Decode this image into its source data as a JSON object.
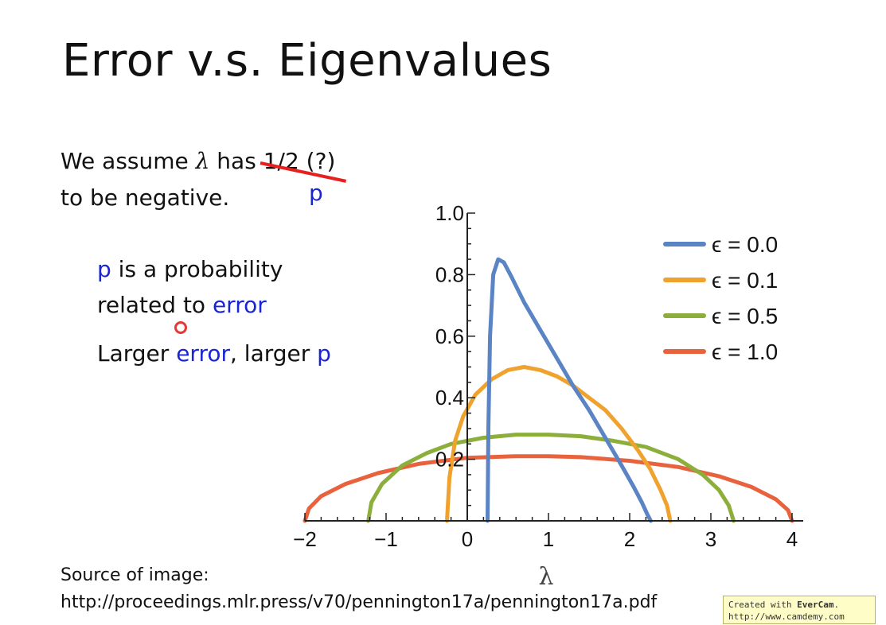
{
  "slide": {
    "title": "Error v.s. Eigenvalues",
    "line1_pre": "We assume ",
    "lambda": "λ",
    "line1_mid": " has ",
    "struck_text": "1/2 (?)",
    "p_annotation": "p",
    "line2": "to be negative.",
    "note1_p": "p",
    "note1_rest": " is a probability",
    "note2_pre": "related to ",
    "note2_error": "error",
    "note3_pre": "Larger ",
    "note3_error": "error",
    "note3_mid": ", larger ",
    "note3_p": "p",
    "source_label": "Source of image:",
    "source_url": "http://proceedings.mlr.press/v70/pennington17a/pennington17a.pdf",
    "watermark_line1_pre": "Created with ",
    "watermark_brand": "EverCam",
    "watermark_line1_post": ".",
    "watermark_line2": "http://www.camdemy.com"
  },
  "chart_data": {
    "type": "line",
    "title": "",
    "xlabel": "λ",
    "ylabel": "",
    "xlim": [
      -2,
      4
    ],
    "ylim": [
      0,
      1.0
    ],
    "x_ticks": [
      "−2",
      "−1",
      "0",
      "1",
      "2",
      "3",
      "4"
    ],
    "y_ticks": [
      "0.2",
      "0.4",
      "0.6",
      "0.8",
      "1.0"
    ],
    "y_tick_values": [
      0.2,
      0.4,
      0.6,
      0.8,
      1.0
    ],
    "x_tick_values": [
      -2,
      -1,
      0,
      1,
      2,
      3,
      4
    ],
    "legend_position": "top-right",
    "series": [
      {
        "name": "ϵ = 0.0",
        "color": "#5b84c4",
        "x": [
          0.25,
          0.26,
          0.28,
          0.32,
          0.38,
          0.45,
          0.55,
          0.7,
          0.9,
          1.1,
          1.3,
          1.5,
          1.7,
          1.9,
          2.05,
          2.15,
          2.22,
          2.26
        ],
        "y": [
          0,
          0.3,
          0.6,
          0.8,
          0.85,
          0.84,
          0.79,
          0.71,
          0.62,
          0.53,
          0.44,
          0.36,
          0.27,
          0.18,
          0.11,
          0.06,
          0.02,
          0
        ]
      },
      {
        "name": "ϵ = 0.1",
        "color": "#f0a22e",
        "x": [
          -0.25,
          -0.22,
          -0.15,
          -0.05,
          0.1,
          0.3,
          0.5,
          0.7,
          0.9,
          1.1,
          1.3,
          1.5,
          1.7,
          1.9,
          2.1,
          2.25,
          2.38,
          2.46,
          2.5
        ],
        "y": [
          0,
          0.14,
          0.26,
          0.34,
          0.41,
          0.46,
          0.49,
          0.5,
          0.49,
          0.47,
          0.44,
          0.4,
          0.36,
          0.3,
          0.23,
          0.17,
          0.1,
          0.05,
          0
        ]
      },
      {
        "name": "ϵ = 0.5",
        "color": "#8caf3b",
        "x": [
          -1.22,
          -1.18,
          -1.05,
          -0.8,
          -0.5,
          -0.2,
          0.2,
          0.6,
          1.0,
          1.4,
          1.8,
          2.2,
          2.6,
          2.9,
          3.1,
          3.22,
          3.28
        ],
        "y": [
          0,
          0.06,
          0.12,
          0.18,
          0.22,
          0.25,
          0.27,
          0.28,
          0.28,
          0.275,
          0.26,
          0.24,
          0.2,
          0.15,
          0.1,
          0.05,
          0
        ]
      },
      {
        "name": "ϵ = 1.0",
        "color": "#e8633d",
        "x": [
          -2.0,
          -1.95,
          -1.8,
          -1.5,
          -1.1,
          -0.6,
          0.0,
          0.6,
          1.0,
          1.4,
          2.0,
          2.6,
          3.1,
          3.5,
          3.8,
          3.95,
          4.0
        ],
        "y": [
          0,
          0.04,
          0.08,
          0.12,
          0.155,
          0.185,
          0.205,
          0.21,
          0.21,
          0.207,
          0.195,
          0.175,
          0.145,
          0.11,
          0.07,
          0.035,
          0
        ]
      }
    ]
  }
}
